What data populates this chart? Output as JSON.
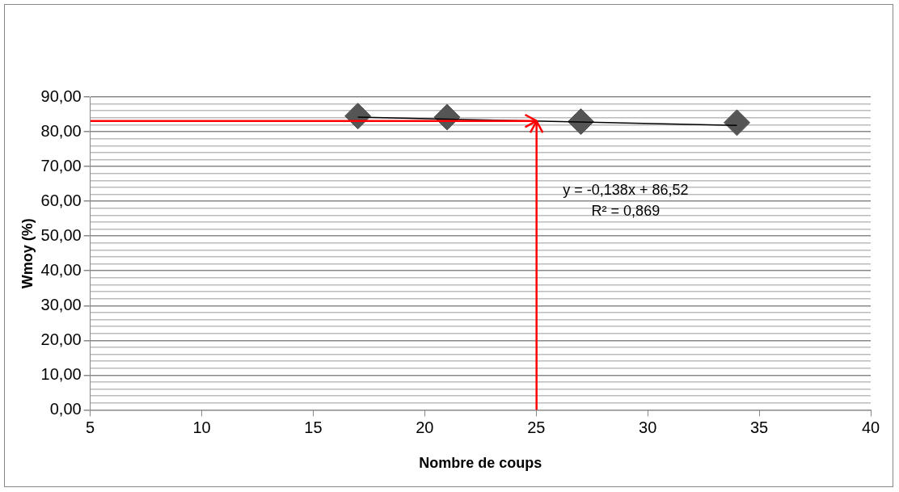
{
  "chart_data": {
    "type": "scatter",
    "xlabel": "Nombre de coups",
    "ylabel": "Wmoy (%)",
    "xlim": [
      5,
      40
    ],
    "xticks": [
      5,
      10,
      15,
      20,
      25,
      30,
      35,
      40
    ],
    "ylim": [
      0,
      90
    ],
    "yticks": [
      {
        "value": 0,
        "label": "0,00"
      },
      {
        "value": 2,
        "label": null
      },
      {
        "value": 4,
        "label": null
      },
      {
        "value": 6,
        "label": null
      },
      {
        "value": 8,
        "label": null
      },
      {
        "value": 10,
        "label": "10,00"
      },
      {
        "value": 12,
        "label": null
      },
      {
        "value": 14,
        "label": null
      },
      {
        "value": 16,
        "label": null
      },
      {
        "value": 18,
        "label": null
      },
      {
        "value": 20,
        "label": "20,00"
      },
      {
        "value": 22,
        "label": null
      },
      {
        "value": 24,
        "label": null
      },
      {
        "value": 26,
        "label": null
      },
      {
        "value": 28,
        "label": null
      },
      {
        "value": 30,
        "label": "30,00"
      },
      {
        "value": 32,
        "label": null
      },
      {
        "value": 34,
        "label": null
      },
      {
        "value": 36,
        "label": null
      },
      {
        "value": 38,
        "label": null
      },
      {
        "value": 40,
        "label": "40,00"
      },
      {
        "value": 42,
        "label": null
      },
      {
        "value": 44,
        "label": null
      },
      {
        "value": 46,
        "label": null
      },
      {
        "value": 48,
        "label": null
      },
      {
        "value": 50,
        "label": "50,00"
      },
      {
        "value": 52,
        "label": null
      },
      {
        "value": 54,
        "label": null
      },
      {
        "value": 56,
        "label": null
      },
      {
        "value": 58,
        "label": null
      },
      {
        "value": 60,
        "label": "60,00"
      },
      {
        "value": 62,
        "label": null
      },
      {
        "value": 64,
        "label": null
      },
      {
        "value": 66,
        "label": null
      },
      {
        "value": 68,
        "label": null
      },
      {
        "value": 70,
        "label": "70,00"
      },
      {
        "value": 72,
        "label": null
      },
      {
        "value": 74,
        "label": null
      },
      {
        "value": 76,
        "label": null
      },
      {
        "value": 78,
        "label": null
      },
      {
        "value": 80,
        "label": "80,00"
      },
      {
        "value": 82,
        "label": null
      },
      {
        "value": 84,
        "label": null
      },
      {
        "value": 86,
        "label": null
      },
      {
        "value": 88,
        "label": null
      },
      {
        "value": 90,
        "label": "90,00"
      }
    ],
    "grid": "y",
    "legend": false,
    "series": [
      {
        "marker": "diamond",
        "color": "#555555",
        "x": [
          17,
          21,
          27,
          34
        ],
        "values": [
          84.5,
          84.2,
          82.9,
          82.6
        ]
      },
      {
        "type": "line",
        "marker": "none",
        "color": "#000000",
        "x": [
          17,
          34
        ],
        "values": [
          84.2,
          81.8
        ]
      }
    ],
    "ref_lines": [
      {
        "axis": "y",
        "value": 83,
        "color": "#ff0000"
      },
      {
        "axis": "x",
        "value": 25,
        "color": "#ff0000"
      }
    ],
    "annotations": [
      "y = -0,138x + 86,52",
      "R² = 0,869"
    ]
  }
}
